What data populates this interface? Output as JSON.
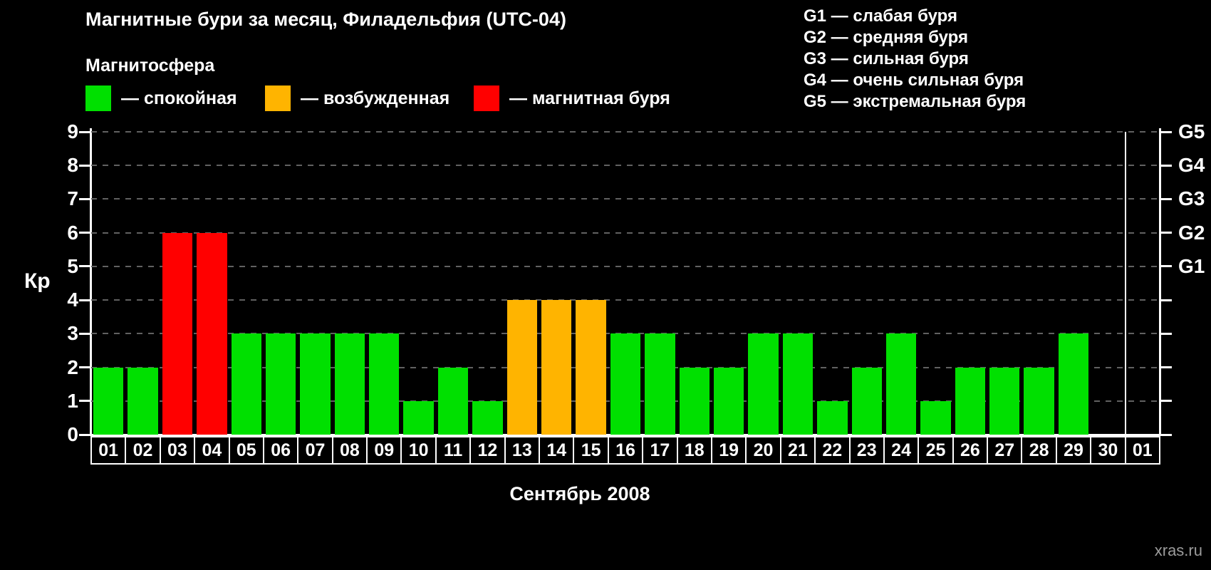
{
  "title": "Магнитные бури за месяц, Филадельфия (UTC-04)",
  "subtitle": "Магнитосфера",
  "legend": [
    {
      "label": "— спокойная",
      "color": "#00e000"
    },
    {
      "label": "— возбужденная",
      "color": "#ffb400"
    },
    {
      "label": "— магнитная буря",
      "color": "#ff0000"
    }
  ],
  "storm_scale": [
    "G1 — слабая буря",
    "G2 — средняя буря",
    "G3 — сильная буря",
    "G4 — очень сильная буря",
    "G5 — экстремальная буря"
  ],
  "watermark": "xras.ru",
  "chart_data": {
    "type": "bar",
    "title": "Магнитные бури за месяц, Филадельфия (UTC-04)",
    "xlabel": "Сентябрь 2008",
    "ylabel": "Кр",
    "ylim": [
      0,
      9
    ],
    "yticks": [
      0,
      1,
      2,
      3,
      4,
      5,
      6,
      7,
      8,
      9
    ],
    "grid": "dashed",
    "legend_position": "top-left",
    "right_axis_labels": [
      {
        "label": "G1",
        "value": 5
      },
      {
        "label": "G2",
        "value": 6
      },
      {
        "label": "G3",
        "value": 7
      },
      {
        "label": "G4",
        "value": 8
      },
      {
        "label": "G5",
        "value": 9
      }
    ],
    "categories": [
      "01",
      "02",
      "03",
      "04",
      "05",
      "06",
      "07",
      "08",
      "09",
      "10",
      "11",
      "12",
      "13",
      "14",
      "15",
      "16",
      "17",
      "18",
      "19",
      "20",
      "21",
      "22",
      "23",
      "24",
      "25",
      "26",
      "27",
      "28",
      "29",
      "30",
      "01"
    ],
    "values": [
      2,
      2,
      6,
      6,
      3,
      3,
      3,
      3,
      3,
      1,
      2,
      1,
      4,
      4,
      4,
      3,
      3,
      2,
      2,
      3,
      3,
      1,
      2,
      3,
      1,
      2,
      2,
      2,
      3,
      0,
      0
    ],
    "bar_states": [
      "quiet",
      "quiet",
      "storm",
      "storm",
      "quiet",
      "quiet",
      "quiet",
      "quiet",
      "quiet",
      "quiet",
      "quiet",
      "quiet",
      "active",
      "active",
      "active",
      "quiet",
      "quiet",
      "quiet",
      "quiet",
      "quiet",
      "quiet",
      "quiet",
      "quiet",
      "quiet",
      "quiet",
      "quiet",
      "quiet",
      "quiet",
      "quiet",
      "none",
      "none"
    ],
    "color_map": {
      "quiet": "#00e000",
      "active": "#ffb400",
      "storm": "#ff0000"
    },
    "month_separator_after_index": 29
  }
}
